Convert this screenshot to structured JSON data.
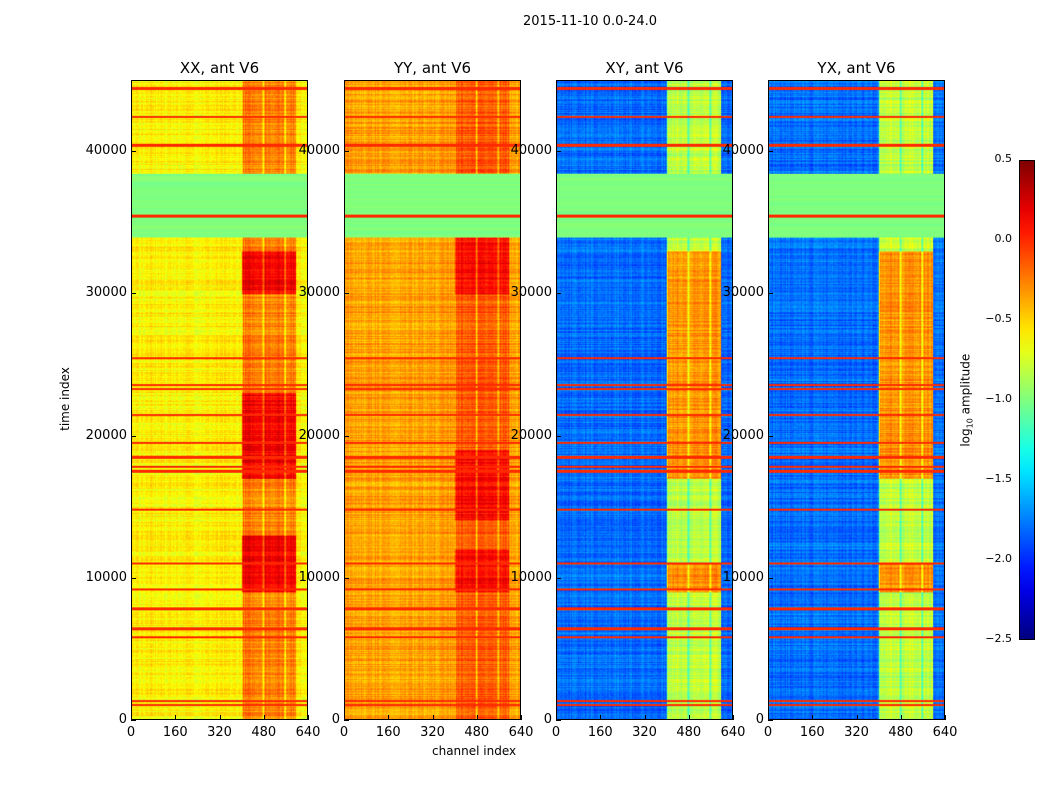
{
  "chart_data": {
    "type": "heatmap",
    "suptitle": "2015-11-10 0.0-24.0",
    "xlabel": "channel index",
    "ylabel": "time index",
    "xlim": [
      0,
      640
    ],
    "ylim": [
      0,
      45000
    ],
    "xticks": [
      "0",
      "160",
      "320",
      "480",
      "640"
    ],
    "xtick_values": [
      0,
      160,
      320,
      480,
      640
    ],
    "yticks": [
      "0",
      "10000",
      "20000",
      "30000",
      "40000"
    ],
    "ytick_values": [
      0,
      10000,
      20000,
      30000,
      40000
    ],
    "colormap": "jet",
    "colorbar": {
      "label_main": "log",
      "label_sub": "10",
      "label_rest": " amplitude",
      "range": [
        -2.5,
        0.5
      ],
      "ticks": [
        "0.5",
        "0.0",
        "−0.5",
        "−1.0",
        "−1.5",
        "−2.0",
        "−2.5"
      ],
      "tick_values": [
        0.5,
        0.0,
        -0.5,
        -1.0,
        -1.5,
        -2.0,
        -2.5
      ]
    },
    "flagged_rows": [
      1000,
      1300,
      5800,
      6400,
      7800,
      9200,
      11000,
      14800,
      17500,
      17800,
      18500,
      19500,
      21500,
      23300,
      23600,
      25500,
      35500,
      40500,
      42500,
      44500
    ],
    "flagged_value": 0.0,
    "quiet_band": [
      34000,
      38500
    ],
    "quiet_band_value": -1.0,
    "active_channels": [
      400,
      600
    ],
    "panels": [
      {
        "title": "XX, ant V6",
        "base_value": -0.6,
        "active_value": -0.25,
        "strong_rows": [
          [
            9000,
            13000
          ],
          [
            17000,
            23000
          ],
          [
            30000,
            33000
          ]
        ],
        "strong_value": 0.15
      },
      {
        "title": "YY, ant V6",
        "base_value": -0.35,
        "active_value": -0.15,
        "strong_rows": [
          [
            9000,
            12000
          ],
          [
            14000,
            19000
          ],
          [
            30000,
            34000
          ]
        ],
        "strong_value": 0.1
      },
      {
        "title": "XY, ant V6",
        "base_value": -1.8,
        "active_value": -0.8,
        "strong_rows": [
          [
            9000,
            11000
          ],
          [
            17000,
            33000
          ]
        ],
        "strong_value": -0.3
      },
      {
        "title": "YX, ant V6",
        "base_value": -1.8,
        "active_value": -0.8,
        "strong_rows": [
          [
            9000,
            11000
          ],
          [
            17000,
            33000
          ]
        ],
        "strong_value": -0.3
      }
    ]
  }
}
